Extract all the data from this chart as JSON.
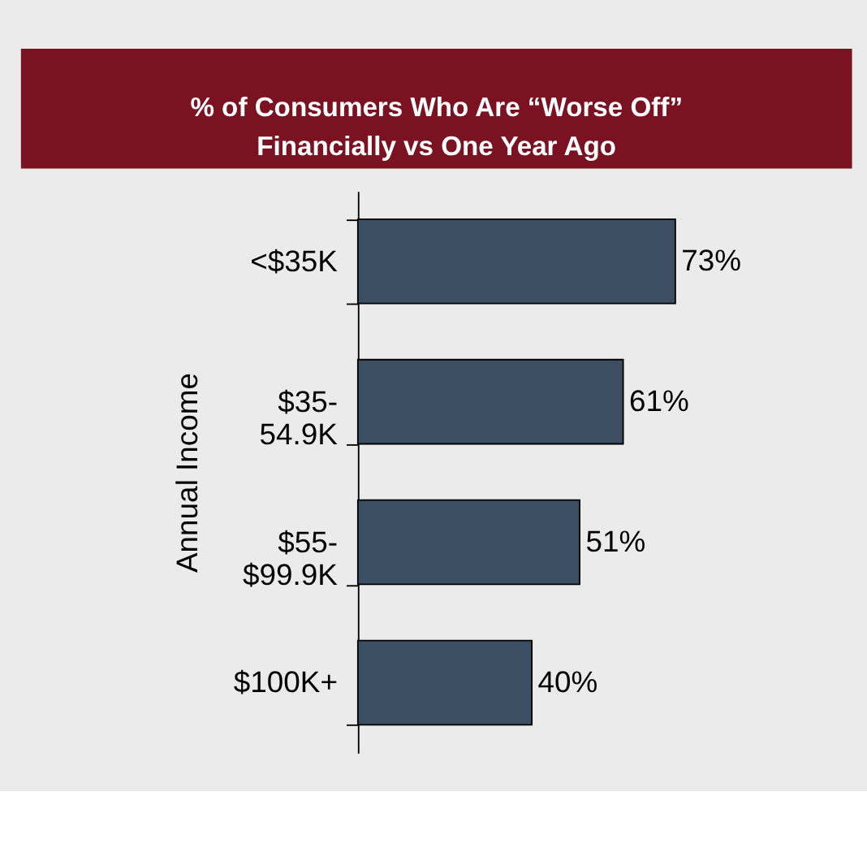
{
  "chart_data": {
    "type": "bar",
    "orientation": "horizontal",
    "title": "% of Consumers Who Are “Worse Off”\nFinancially vs One Year Ago",
    "ylabel": "Annual Income",
    "categories": [
      "<$35K",
      "$35-\n54.9K",
      "$55-\n$99.9K",
      "$100K+"
    ],
    "values": [
      73,
      61,
      51,
      40
    ],
    "color": "#3c4f62",
    "value_labels": [
      "73%",
      "61%",
      "51%",
      "40%"
    ]
  }
}
